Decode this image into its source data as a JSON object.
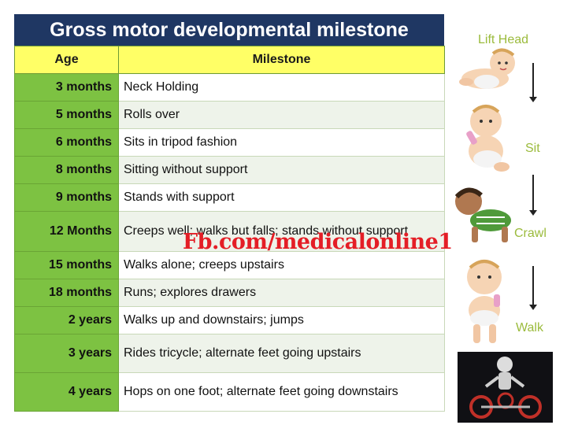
{
  "title": "Gross motor developmental milestone",
  "table": {
    "headers": {
      "age": "Age",
      "milestone": "Milestone"
    },
    "rows": [
      {
        "age": "3 months",
        "milestone": "Neck Holding"
      },
      {
        "age": "5 months",
        "milestone": "Rolls over"
      },
      {
        "age": "6 months",
        "milestone": "Sits in tripod fashion"
      },
      {
        "age": "8 months",
        "milestone": "Sitting without support"
      },
      {
        "age": "9 months",
        "milestone": "Stands with support"
      },
      {
        "age": "12 Months",
        "milestone": "Creeps well; walks but falls; stands without support"
      },
      {
        "age": "15 months",
        "milestone": "Walks alone; creeps upstairs"
      },
      {
        "age": "18 months",
        "milestone": "Runs; explores drawers"
      },
      {
        "age": "2 years",
        "milestone": "Walks up and downstairs; jumps"
      },
      {
        "age": "3 years",
        "milestone": "Rides tricycle; alternate feet going upstairs"
      },
      {
        "age": "4 years",
        "milestone": "Hops on one foot; alternate feet going downstairs"
      }
    ]
  },
  "watermark": "Fb.com/medicalonline1",
  "stages": {
    "lift_head": "Lift Head",
    "sit": "Sit",
    "crawl": "Crawl",
    "walk": "Walk"
  },
  "colors": {
    "title_bg": "#1f3763",
    "header_bg": "#ffff66",
    "age_bg": "#7dc242",
    "watermark": "#e41e26",
    "stage_label": "#9bbb3c"
  },
  "icons": [
    "baby-lifting-head-icon",
    "baby-sitting-icon",
    "baby-crawling-icon",
    "baby-walking-icon",
    "tricycle-photo"
  ]
}
